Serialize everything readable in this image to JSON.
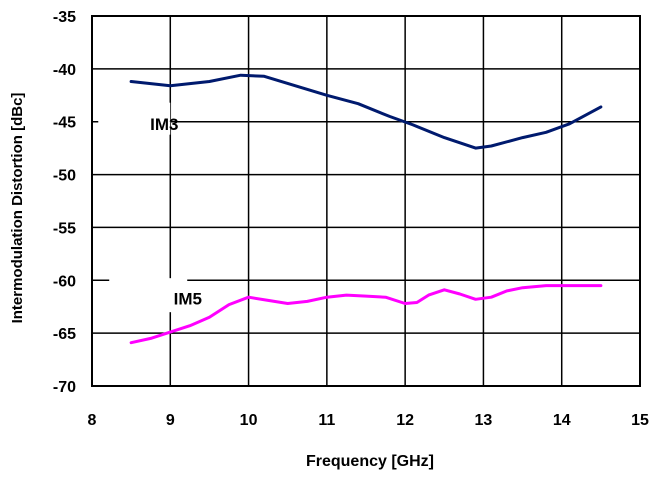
{
  "chart_data": {
    "type": "line",
    "title": "",
    "xlabel": "Frequency [GHz]",
    "ylabel": "Intermodulation Distortion [dBc]",
    "xlim": [
      8,
      15
    ],
    "ylim": [
      -70,
      -35
    ],
    "xticks": [
      8,
      9,
      10,
      11,
      12,
      13,
      14,
      15
    ],
    "yticks": [
      -35,
      -40,
      -45,
      -50,
      -55,
      -60,
      -65,
      -70
    ],
    "grid": true,
    "series": [
      {
        "name": "IM3",
        "color": "#001a6e",
        "x": [
          8.5,
          9.0,
          9.5,
          9.9,
          10.2,
          10.6,
          11.0,
          11.4,
          11.8,
          12.1,
          12.5,
          12.9,
          13.1,
          13.5,
          13.8,
          14.1,
          14.5
        ],
        "y": [
          -41.2,
          -41.6,
          -41.2,
          -40.6,
          -40.7,
          -41.6,
          -42.5,
          -43.3,
          -44.5,
          -45.3,
          -46.5,
          -47.5,
          -47.3,
          -46.5,
          -46.0,
          -45.2,
          -43.6
        ]
      },
      {
        "name": "IM5",
        "color": "#ff00ff",
        "x": [
          8.5,
          8.75,
          9.0,
          9.25,
          9.5,
          9.75,
          10.0,
          10.25,
          10.5,
          10.75,
          11.0,
          11.25,
          11.5,
          11.75,
          12.0,
          12.15,
          12.3,
          12.5,
          12.7,
          12.9,
          13.1,
          13.3,
          13.5,
          13.8,
          14.2,
          14.5
        ],
        "y": [
          -65.9,
          -65.5,
          -64.9,
          -64.3,
          -63.5,
          -62.3,
          -61.6,
          -61.9,
          -62.2,
          -62.0,
          -61.6,
          -61.4,
          -61.5,
          -61.6,
          -62.2,
          -62.1,
          -61.4,
          -60.9,
          -61.3,
          -61.8,
          -61.6,
          -61.0,
          -60.7,
          -60.5,
          -60.5,
          -60.5
        ]
      }
    ]
  }
}
